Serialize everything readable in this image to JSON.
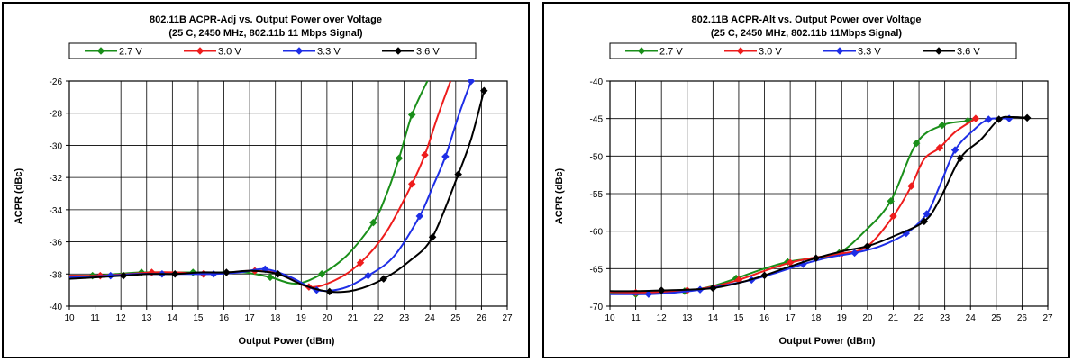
{
  "chart_data": [
    {
      "type": "line",
      "title": "802.11B ACPR-Adj vs. Output Power over Voltage",
      "subtitle": "(25 C, 2450 MHz, 802.11b 11 Mbps Signal)",
      "xlabel": "Output Power (dBm)",
      "ylabel": "ACPR (dBc)",
      "xlim": [
        10,
        27
      ],
      "ylim": [
        -40,
        -26
      ],
      "xticks": [
        "10",
        "11",
        "12",
        "13",
        "14",
        "15",
        "16",
        "17",
        "18",
        "19",
        "20",
        "21",
        "22",
        "23",
        "24",
        "25",
        "26",
        "27"
      ],
      "yticks": [
        "-40",
        "-38",
        "-36",
        "-34",
        "-32",
        "-30",
        "-28",
        "-26"
      ],
      "grid": true,
      "legend_position": "top",
      "series": [
        {
          "name": "2.7 V",
          "color": "#1a8f1a",
          "x": [
            10,
            10.9,
            11.8,
            12.8,
            13.8,
            14.8,
            15.8,
            16.8,
            17.8,
            18.8,
            19.8,
            20.8,
            21.8,
            22.3,
            22.8,
            23.3,
            23.9
          ],
          "y": [
            -38.1,
            -38.1,
            -38.0,
            -37.9,
            -37.9,
            -37.9,
            -37.9,
            -37.9,
            -38.2,
            -38.6,
            -38.0,
            -36.8,
            -34.8,
            -33.1,
            -30.8,
            -28.1,
            -26.0
          ],
          "markers": [
            1,
            3,
            5,
            8,
            10,
            12,
            14,
            15
          ]
        },
        {
          "name": "3.0 V",
          "color": "#ee1c1c",
          "x": [
            10,
            11.2,
            12.3,
            13.2,
            14.2,
            15.2,
            16.2,
            17.2,
            18.2,
            19.3,
            20.3,
            21.3,
            22.3,
            23.3,
            23.8,
            24.3,
            24.8
          ],
          "y": [
            -38.1,
            -38.1,
            -38.0,
            -37.9,
            -37.9,
            -38.0,
            -37.9,
            -37.8,
            -38.0,
            -38.8,
            -38.4,
            -37.3,
            -35.4,
            -32.4,
            -30.6,
            -28.2,
            -26.0
          ],
          "markers": [
            1,
            3,
            5,
            7,
            9,
            11,
            13,
            14
          ]
        },
        {
          "name": "3.3 V",
          "color": "#1e2ee6",
          "x": [
            10,
            11.6,
            12.6,
            13.6,
            14.6,
            15.6,
            16.6,
            17.6,
            18.6,
            19.6,
            20.6,
            21.6,
            22.6,
            23.6,
            24.1,
            24.6,
            25.1,
            25.6
          ],
          "y": [
            -38.2,
            -38.1,
            -38.0,
            -38.0,
            -38.0,
            -38.0,
            -37.9,
            -37.7,
            -38.2,
            -39.0,
            -38.9,
            -38.1,
            -36.9,
            -34.4,
            -32.6,
            -30.7,
            -28.2,
            -26.0
          ],
          "markers": [
            1,
            3,
            5,
            7,
            9,
            11,
            13,
            15,
            17
          ]
        },
        {
          "name": "3.6 V",
          "color": "#000000",
          "x": [
            10,
            11.1,
            12.1,
            13.1,
            14.1,
            15.1,
            16.1,
            17.1,
            18.1,
            19.1,
            20.1,
            21.1,
            22.2,
            23.2,
            24.1,
            25.1,
            25.6,
            26.1
          ],
          "y": [
            -38.3,
            -38.2,
            -38.1,
            -38.0,
            -38.0,
            -37.9,
            -37.9,
            -37.8,
            -38.0,
            -38.7,
            -39.1,
            -39.0,
            -38.3,
            -37.2,
            -35.7,
            -31.8,
            -29.6,
            -26.6
          ],
          "markers": [
            2,
            4,
            6,
            8,
            10,
            12,
            14,
            15,
            17
          ]
        }
      ]
    },
    {
      "type": "line",
      "title": "802.11B ACPR-Alt vs. Output Power over Voltage",
      "subtitle": "(25 C, 2450 MHz, 802.11b 11Mbps Signal)",
      "xlabel": "Output Power (dBm)",
      "ylabel": "ACPR (dBc)",
      "xlim": [
        10,
        27
      ],
      "ylim": [
        -70,
        -40
      ],
      "xticks": [
        "10",
        "11",
        "12",
        "13",
        "14",
        "15",
        "16",
        "17",
        "18",
        "19",
        "20",
        "21",
        "22",
        "23",
        "24",
        "25",
        "26",
        "27"
      ],
      "yticks": [
        "-70",
        "-65",
        "-60",
        "-55",
        "-50",
        "-45",
        "-40"
      ],
      "grid": true,
      "legend_position": "top",
      "series": [
        {
          "name": "2.7 V",
          "color": "#1a8f1a",
          "x": [
            10,
            11,
            12,
            12.9,
            13.9,
            14.9,
            15.9,
            16.9,
            17.9,
            18.9,
            19.9,
            20.9,
            21.9,
            22.9,
            23.9,
            24.2
          ],
          "y": [
            -68.2,
            -68.4,
            -68.2,
            -68.0,
            -67.4,
            -66.3,
            -65.1,
            -64.1,
            -63.6,
            -62.9,
            -60.0,
            -56.0,
            -48.3,
            -45.9,
            -45.3,
            -45.0
          ],
          "markers": [
            1,
            3,
            5,
            7,
            9,
            11,
            12,
            13,
            14
          ]
        },
        {
          "name": "3.0 V",
          "color": "#ee1c1c",
          "x": [
            10,
            11,
            12,
            13,
            14,
            15,
            16,
            17,
            18,
            19,
            20,
            21,
            21.7,
            22.2,
            22.8,
            23.4,
            24.2
          ],
          "y": [
            -68.1,
            -68.2,
            -68.1,
            -67.9,
            -67.4,
            -66.5,
            -65.3,
            -64.2,
            -63.5,
            -63.0,
            -62.0,
            -58.0,
            -54.0,
            -50.4,
            -48.9,
            -46.8,
            -45.0
          ],
          "markers": [
            1,
            3,
            5,
            7,
            9,
            11,
            12,
            14,
            16
          ]
        },
        {
          "name": "3.3 V",
          "color": "#1e2ee6",
          "x": [
            10,
            11.5,
            12.5,
            13.5,
            14.5,
            15.5,
            16.5,
            17.5,
            18.5,
            19.5,
            20.5,
            21.5,
            22.3,
            22.8,
            23.4,
            24.1,
            24.7,
            25.5
          ],
          "y": [
            -68.4,
            -68.4,
            -68.2,
            -67.8,
            -67.2,
            -66.5,
            -65.5,
            -64.4,
            -63.5,
            -62.9,
            -62.0,
            -60.3,
            -57.7,
            -54.0,
            -49.2,
            -46.6,
            -45.1,
            -45.0
          ],
          "markers": [
            1,
            3,
            5,
            7,
            9,
            11,
            12,
            14,
            16,
            17
          ]
        },
        {
          "name": "3.6 V",
          "color": "#000000",
          "x": [
            10,
            11,
            12,
            13,
            14,
            15,
            16,
            17,
            18,
            19,
            20,
            21,
            22.2,
            22.8,
            23.6,
            24.4,
            25.1,
            25.6,
            26.2
          ],
          "y": [
            -68.0,
            -68.0,
            -67.9,
            -67.8,
            -67.6,
            -66.9,
            -65.9,
            -64.7,
            -63.6,
            -62.7,
            -62.0,
            -60.7,
            -58.7,
            -55.8,
            -50.3,
            -47.8,
            -45.1,
            -44.8,
            -44.9
          ],
          "markers": [
            2,
            4,
            6,
            8,
            10,
            12,
            14,
            16,
            18
          ]
        }
      ]
    }
  ]
}
